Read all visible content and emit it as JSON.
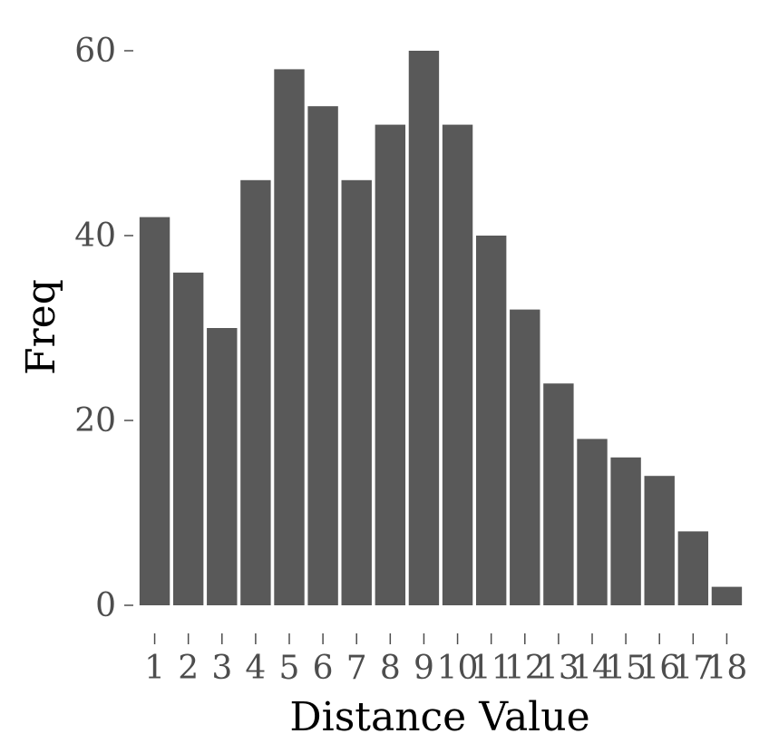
{
  "colors": {
    "bar": "#595959",
    "background": "#ffffff",
    "tick": "#4d4d4d"
  },
  "chart_data": {
    "type": "bar",
    "title": "",
    "xlabel": "Distance Value",
    "ylabel": "Freq",
    "categories": [
      "1",
      "2",
      "3",
      "4",
      "5",
      "6",
      "7",
      "8",
      "9",
      "10",
      "11",
      "12",
      "13",
      "14",
      "15",
      "16",
      "17",
      "18"
    ],
    "values": [
      42,
      36,
      30,
      46,
      58,
      54,
      46,
      52,
      60,
      52,
      40,
      32,
      24,
      18,
      16,
      14,
      8,
      2
    ],
    "ylim": [
      0,
      60
    ],
    "yticks": [
      "0",
      "20",
      "40",
      "60"
    ],
    "grid": false,
    "legend": "none"
  }
}
